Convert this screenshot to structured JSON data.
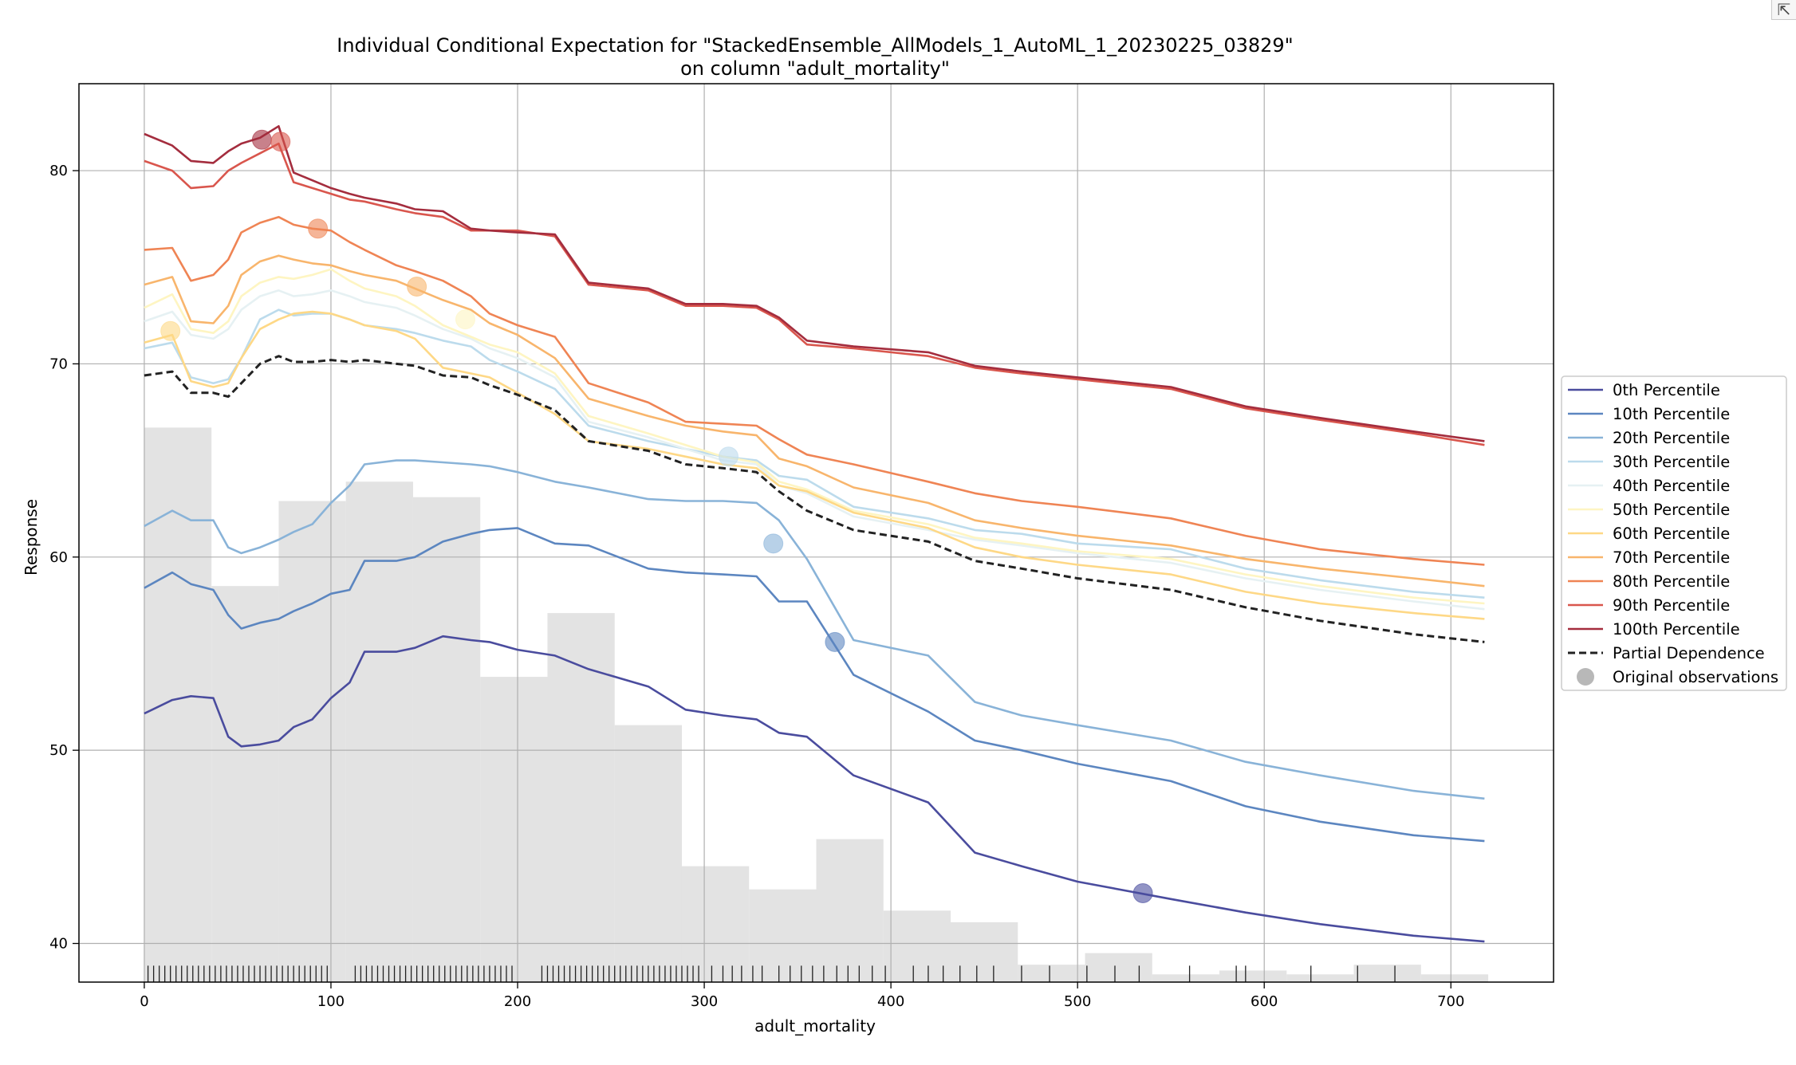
{
  "corner_button": {
    "glyph": "⇱"
  },
  "chart_data": {
    "type": "line",
    "title": "Individual Conditional Expectation for \"StackedEnsemble_AllModels_1_AutoML_1_20230225_03829\"",
    "subtitle": "on column \"adult_mortality\"",
    "xlabel": "adult_mortality",
    "ylabel": "Response",
    "xlim": [
      -35,
      755
    ],
    "ylim": [
      38,
      84.5
    ],
    "xticks": [
      0,
      100,
      200,
      300,
      400,
      500,
      600,
      700
    ],
    "yticks": [
      40,
      50,
      60,
      70,
      80
    ],
    "grid": true,
    "legend_position": "right",
    "x": [
      0,
      15,
      25,
      37,
      45,
      52,
      62,
      72,
      80,
      90,
      100,
      110,
      118,
      135,
      145,
      160,
      175,
      185,
      200,
      220,
      238,
      270,
      290,
      310,
      328,
      340,
      355,
      380,
      420,
      445,
      470,
      500,
      550,
      590,
      630,
      680,
      718
    ],
    "series": [
      {
        "name": "0th Percentile",
        "color": "#4a4c9e",
        "values": [
          51.9,
          52.6,
          52.8,
          52.7,
          50.7,
          50.2,
          50.3,
          50.5,
          51.2,
          51.6,
          52.7,
          53.5,
          55.1,
          55.1,
          55.3,
          55.9,
          55.7,
          55.6,
          55.2,
          54.9,
          54.2,
          53.3,
          52.1,
          51.8,
          51.6,
          50.9,
          50.7,
          48.7,
          47.3,
          44.7,
          44.0,
          43.2,
          42.3,
          41.6,
          41.0,
          40.4,
          40.1
        ]
      },
      {
        "name": "10th Percentile",
        "color": "#5c86c0",
        "values": [
          58.4,
          59.2,
          58.6,
          58.3,
          57.0,
          56.3,
          56.6,
          56.8,
          57.2,
          57.6,
          58.1,
          58.3,
          59.8,
          59.8,
          60.0,
          60.8,
          61.2,
          61.4,
          61.5,
          60.7,
          60.6,
          59.4,
          59.2,
          59.1,
          59.0,
          57.7,
          57.7,
          53.9,
          52.0,
          50.5,
          50.0,
          49.3,
          48.4,
          47.1,
          46.3,
          45.6,
          45.3
        ]
      },
      {
        "name": "20th Percentile",
        "color": "#89b3d8",
        "values": [
          61.6,
          62.4,
          61.9,
          61.9,
          60.5,
          60.2,
          60.5,
          60.9,
          61.3,
          61.7,
          62.8,
          63.7,
          64.8,
          65.0,
          65.0,
          64.9,
          64.8,
          64.7,
          64.4,
          63.9,
          63.6,
          63.0,
          62.9,
          62.9,
          62.8,
          61.9,
          59.9,
          55.7,
          54.9,
          52.5,
          51.8,
          51.3,
          50.5,
          49.4,
          48.7,
          47.9,
          47.5
        ]
      },
      {
        "name": "30th Percentile",
        "color": "#bcdbec",
        "values": [
          70.8,
          71.1,
          69.3,
          69.0,
          69.2,
          70.3,
          72.3,
          72.8,
          72.5,
          72.6,
          72.6,
          72.3,
          72.0,
          71.8,
          71.6,
          71.2,
          70.9,
          70.2,
          69.6,
          68.7,
          66.8,
          66.0,
          65.6,
          65.2,
          65.0,
          64.2,
          64.0,
          62.6,
          62.0,
          61.4,
          61.2,
          60.7,
          60.4,
          59.4,
          58.8,
          58.2,
          57.9
        ]
      },
      {
        "name": "40th Percentile",
        "color": "#e6f1f3",
        "values": [
          72.2,
          72.7,
          71.5,
          71.3,
          71.8,
          72.8,
          73.5,
          73.8,
          73.5,
          73.6,
          73.8,
          73.5,
          73.2,
          72.9,
          72.5,
          71.8,
          71.3,
          70.8,
          70.3,
          69.3,
          67.0,
          66.2,
          65.6,
          65.0,
          64.8,
          63.7,
          63.3,
          62.1,
          61.4,
          60.9,
          60.6,
          60.2,
          59.7,
          58.9,
          58.3,
          57.7,
          57.3
        ]
      },
      {
        "name": "50th Percentile",
        "color": "#fef5c2",
        "values": [
          72.9,
          73.6,
          71.8,
          71.6,
          72.2,
          73.5,
          74.2,
          74.5,
          74.4,
          74.6,
          74.9,
          74.3,
          73.9,
          73.5,
          73.0,
          72.0,
          71.4,
          71.0,
          70.6,
          69.5,
          67.3,
          66.4,
          65.8,
          65.2,
          64.9,
          63.9,
          63.5,
          62.4,
          61.7,
          61.0,
          60.7,
          60.3,
          59.9,
          59.1,
          58.5,
          57.9,
          57.6
        ]
      },
      {
        "name": "60th Percentile",
        "color": "#fed886",
        "values": [
          71.1,
          71.5,
          69.1,
          68.8,
          69.0,
          70.3,
          71.8,
          72.3,
          72.6,
          72.7,
          72.6,
          72.3,
          72.0,
          71.7,
          71.3,
          69.8,
          69.5,
          69.3,
          68.5,
          67.4,
          66.0,
          65.6,
          65.2,
          64.8,
          64.6,
          63.7,
          63.4,
          62.3,
          61.5,
          60.5,
          60.0,
          59.6,
          59.1,
          58.2,
          57.6,
          57.1,
          56.8
        ]
      },
      {
        "name": "70th Percentile",
        "color": "#f8b56c",
        "values": [
          74.1,
          74.5,
          72.2,
          72.1,
          73.0,
          74.6,
          75.3,
          75.6,
          75.4,
          75.2,
          75.1,
          74.8,
          74.6,
          74.3,
          73.9,
          73.3,
          72.8,
          72.1,
          71.5,
          70.3,
          68.2,
          67.3,
          66.8,
          66.5,
          66.3,
          65.1,
          64.7,
          63.6,
          62.8,
          61.9,
          61.5,
          61.1,
          60.6,
          59.9,
          59.4,
          58.9,
          58.5
        ]
      },
      {
        "name": "80th Percentile",
        "color": "#ef8454",
        "values": [
          75.9,
          76.0,
          74.3,
          74.6,
          75.4,
          76.8,
          77.3,
          77.6,
          77.2,
          77.0,
          76.9,
          76.3,
          75.9,
          75.1,
          74.8,
          74.3,
          73.5,
          72.6,
          72.0,
          71.4,
          69.0,
          68.0,
          67.0,
          66.9,
          66.8,
          66.1,
          65.3,
          64.8,
          63.9,
          63.3,
          62.9,
          62.6,
          62.0,
          61.1,
          60.4,
          59.9,
          59.6
        ]
      },
      {
        "name": "90th Percentile",
        "color": "#d9564d",
        "values": [
          80.5,
          80.0,
          79.1,
          79.2,
          80.0,
          80.4,
          80.9,
          81.4,
          79.4,
          79.1,
          78.8,
          78.5,
          78.4,
          78.0,
          77.8,
          77.6,
          76.9,
          76.9,
          76.9,
          76.6,
          74.1,
          73.8,
          73.0,
          73.0,
          72.9,
          72.3,
          71.0,
          70.8,
          70.4,
          69.8,
          69.5,
          69.2,
          68.7,
          67.7,
          67.1,
          66.4,
          65.8
        ]
      },
      {
        "name": "100th Percentile",
        "color": "#a42d3e",
        "values": [
          81.9,
          81.3,
          80.5,
          80.4,
          81.0,
          81.4,
          81.7,
          82.3,
          79.9,
          79.5,
          79.1,
          78.8,
          78.6,
          78.3,
          78.0,
          77.9,
          77.0,
          76.9,
          76.8,
          76.7,
          74.2,
          73.9,
          73.1,
          73.1,
          73.0,
          72.4,
          71.2,
          70.9,
          70.6,
          69.9,
          69.6,
          69.3,
          68.8,
          67.8,
          67.2,
          66.5,
          66.0
        ]
      },
      {
        "name": "Partial Dependence",
        "color": "#222222",
        "dashed": true,
        "values": [
          69.4,
          69.6,
          68.5,
          68.5,
          68.3,
          69.0,
          70.0,
          70.4,
          70.1,
          70.1,
          70.2,
          70.1,
          70.2,
          70.0,
          69.9,
          69.4,
          69.3,
          68.9,
          68.4,
          67.6,
          66.0,
          65.5,
          64.8,
          64.6,
          64.4,
          63.4,
          62.4,
          61.4,
          60.8,
          59.8,
          59.4,
          58.9,
          58.3,
          57.4,
          56.7,
          56.0,
          55.6
        ]
      }
    ],
    "original_observations": [
      {
        "x": 63,
        "y": 81.6,
        "color": "#a42d3e"
      },
      {
        "x": 73,
        "y": 81.5,
        "color": "#d9564d"
      },
      {
        "x": 93,
        "y": 77.0,
        "color": "#ef8454"
      },
      {
        "x": 146,
        "y": 74.0,
        "color": "#f8b56c"
      },
      {
        "x": 14,
        "y": 71.7,
        "color": "#fed886"
      },
      {
        "x": 172,
        "y": 72.3,
        "color": "#fef5c2"
      },
      {
        "x": 313,
        "y": 65.2,
        "color": "#bcdbec"
      },
      {
        "x": 337,
        "y": 60.7,
        "color": "#89b3d8"
      },
      {
        "x": 370,
        "y": 55.6,
        "color": "#5c86c0"
      },
      {
        "x": 535,
        "y": 42.6,
        "color": "#4a4c9e"
      }
    ],
    "legend_marker_name": "Original observations",
    "histogram": {
      "color": "#e3e3e3",
      "bins": [
        0,
        36,
        72,
        108,
        144,
        180,
        216,
        252,
        288,
        324,
        360,
        396,
        432,
        468,
        504,
        540,
        576,
        612,
        648,
        684,
        720
      ],
      "tops": [
        66.7,
        58.5,
        62.9,
        63.9,
        63.1,
        53.8,
        57.1,
        51.3,
        44.0,
        42.8,
        45.4,
        41.7,
        41.1,
        38.9,
        39.5,
        38.4,
        38.6,
        38.4,
        38.9,
        38.4
      ]
    },
    "rug": [
      2,
      5,
      8,
      11,
      14,
      17,
      20,
      23,
      26,
      29,
      32,
      35,
      38,
      41,
      44,
      47,
      50,
      53,
      56,
      59,
      62,
      65,
      68,
      71,
      74,
      77,
      80,
      83,
      86,
      89,
      92,
      95,
      98,
      113,
      116,
      119,
      122,
      125,
      128,
      131,
      134,
      137,
      140,
      143,
      146,
      149,
      152,
      155,
      158,
      161,
      164,
      167,
      170,
      173,
      176,
      179,
      182,
      185,
      188,
      191,
      194,
      197,
      213,
      216,
      219,
      222,
      225,
      228,
      231,
      234,
      237,
      240,
      243,
      246,
      249,
      252,
      255,
      258,
      261,
      264,
      267,
      270,
      273,
      276,
      279,
      282,
      285,
      288,
      291,
      294,
      297,
      304,
      310,
      315,
      320,
      326,
      331,
      340,
      346,
      352,
      358,
      364,
      371,
      377,
      383,
      390,
      397,
      412,
      420,
      428,
      437,
      446,
      455,
      470,
      485,
      505,
      520,
      533,
      560,
      585,
      590,
      625,
      650,
      670
    ]
  }
}
